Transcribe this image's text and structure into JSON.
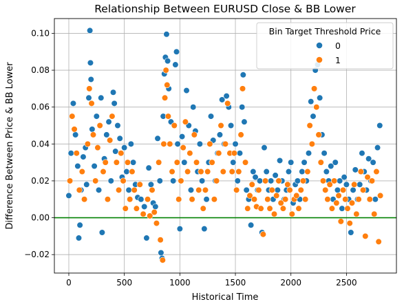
{
  "chart_data": {
    "type": "scatter",
    "title": "Relationship Between EURUSD Close & BB Lower",
    "xlabel": "Historical Time",
    "ylabel": "Difference Between Price & BB Lower",
    "xlim": [
      -130,
      2950
    ],
    "ylim": [
      -0.03,
      0.108
    ],
    "xticks": [
      0,
      500,
      1000,
      1500,
      2000,
      2500
    ],
    "xtick_labels": [
      "0",
      "500",
      "1000",
      "1500",
      "2000",
      "2500"
    ],
    "yticks": [
      -0.02,
      0.0,
      0.02,
      0.04,
      0.06,
      0.08,
      0.1
    ],
    "ytick_labels": [
      "−0.02",
      "0.00",
      "0.02",
      "0.04",
      "0.06",
      "0.08",
      "0.10"
    ],
    "grid": true,
    "reference_line": {
      "y": 0.0,
      "color": "#008000"
    },
    "legend": {
      "title": "Bin Target Threshold Price",
      "placement": "top-right",
      "entries": [
        "0",
        "1"
      ]
    },
    "series": [
      {
        "name": "0",
        "color": "#1f77b4",
        "points": [
          [
            0,
            0.012
          ],
          [
            20,
            0.035
          ],
          [
            40,
            0.062
          ],
          [
            60,
            0.045
          ],
          [
            80,
            0.028
          ],
          [
            90,
            -0.011
          ],
          [
            100,
            -0.004
          ],
          [
            110,
            0.015
          ],
          [
            130,
            0.033
          ],
          [
            150,
            0.038
          ],
          [
            160,
            0.018
          ],
          [
            180,
            0.065
          ],
          [
            190,
            0.1015
          ],
          [
            195,
            0.084
          ],
          [
            200,
            0.075
          ],
          [
            210,
            0.048
          ],
          [
            230,
            0.028
          ],
          [
            250,
            0.055
          ],
          [
            270,
            0.015
          ],
          [
            290,
            0.065
          ],
          [
            300,
            -0.008
          ],
          [
            320,
            0.032
          ],
          [
            340,
            0.045
          ],
          [
            360,
            0.052
          ],
          [
            380,
            0.02
          ],
          [
            400,
            0.068
          ],
          [
            410,
            0.062
          ],
          [
            420,
            0.036
          ],
          [
            440,
            0.05
          ],
          [
            460,
            0.043
          ],
          [
            480,
            0.022
          ],
          [
            500,
            0.038
          ],
          [
            520,
            0.025
          ],
          [
            540,
            0.015
          ],
          [
            560,
            0.04
          ],
          [
            580,
            0.03
          ],
          [
            600,
            0.018
          ],
          [
            620,
            0.011
          ],
          [
            650,
            0.01
          ],
          [
            680,
            0.006
          ],
          [
            700,
            -0.011
          ],
          [
            720,
            0.027
          ],
          [
            740,
            0.018
          ],
          [
            760,
            0.008
          ],
          [
            780,
            0.006
          ],
          [
            800,
            0.043
          ],
          [
            820,
            0.02
          ],
          [
            830,
            -0.019
          ],
          [
            840,
            -0.022
          ],
          [
            850,
            0.055
          ],
          [
            860,
            0.078
          ],
          [
            870,
            0.087
          ],
          [
            880,
            0.0995
          ],
          [
            890,
            0.085
          ],
          [
            900,
            0.07
          ],
          [
            920,
            0.052
          ],
          [
            940,
            0.02
          ],
          [
            960,
            0.083
          ],
          [
            970,
            0.09
          ],
          [
            980,
            0.04
          ],
          [
            1000,
            -0.006
          ],
          [
            1020,
            0.044
          ],
          [
            1040,
            0.03
          ],
          [
            1060,
            0.069
          ],
          [
            1080,
            0.05
          ],
          [
            1100,
            0.015
          ],
          [
            1120,
            0.06
          ],
          [
            1140,
            0.047
          ],
          [
            1160,
            0.025
          ],
          [
            1180,
            0.04
          ],
          [
            1200,
            0.02
          ],
          [
            1220,
            -0.006
          ],
          [
            1240,
            0.01
          ],
          [
            1260,
            0.03
          ],
          [
            1280,
            0.055
          ],
          [
            1300,
            0.042
          ],
          [
            1320,
            0.02
          ],
          [
            1340,
            0.035
          ],
          [
            1360,
            0.045
          ],
          [
            1380,
            0.064
          ],
          [
            1400,
            0.04
          ],
          [
            1420,
            0.066
          ],
          [
            1440,
            0.06
          ],
          [
            1460,
            0.05
          ],
          [
            1480,
            0.03
          ],
          [
            1500,
            0.04
          ],
          [
            1520,
            0.02
          ],
          [
            1540,
            0.035
          ],
          [
            1560,
            0.06
          ],
          [
            1570,
            0.0775
          ],
          [
            1580,
            0.052
          ],
          [
            1600,
            0.015
          ],
          [
            1620,
            0.01
          ],
          [
            1640,
            -0.004
          ],
          [
            1660,
            0.025
          ],
          [
            1680,
            0.022
          ],
          [
            1700,
            0.015
          ],
          [
            1720,
            0.02
          ],
          [
            1740,
            -0.008
          ],
          [
            1760,
            0.038
          ],
          [
            1780,
            0.025
          ],
          [
            1800,
            0.015
          ],
          [
            1820,
            0.02
          ],
          [
            1840,
            0.01
          ],
          [
            1860,
            0.023
          ],
          [
            1880,
            0.015
          ],
          [
            1900,
            0.031
          ],
          [
            1920,
            0.02
          ],
          [
            1940,
            0.01
          ],
          [
            1960,
            0.015
          ],
          [
            1980,
            0.025
          ],
          [
            2000,
            0.03
          ],
          [
            2020,
            0.008
          ],
          [
            2040,
            0.018
          ],
          [
            2060,
            0.02
          ],
          [
            2080,
            0.01
          ],
          [
            2100,
            0.025
          ],
          [
            2120,
            0.03
          ],
          [
            2140,
            0.02
          ],
          [
            2160,
            0.035
          ],
          [
            2180,
            0.063
          ],
          [
            2200,
            0.055
          ],
          [
            2220,
            0.08
          ],
          [
            2240,
            0.083
          ],
          [
            2260,
            0.065
          ],
          [
            2280,
            0.045
          ],
          [
            2300,
            0.035
          ],
          [
            2320,
            0.025
          ],
          [
            2340,
            0.02
          ],
          [
            2360,
            0.028
          ],
          [
            2380,
            0.01
          ],
          [
            2400,
            0.03
          ],
          [
            2420,
            0.015
          ],
          [
            2440,
            0.02
          ],
          [
            2460,
            0.005
          ],
          [
            2480,
            0.022
          ],
          [
            2500,
            0.018
          ],
          [
            2520,
            0.01
          ],
          [
            2540,
            -0.008
          ],
          [
            2560,
            0.015
          ],
          [
            2580,
            0.026
          ],
          [
            2600,
            0.01
          ],
          [
            2620,
            0.018
          ],
          [
            2640,
            0.035
          ],
          [
            2660,
            0.025
          ],
          [
            2680,
            0.015
          ],
          [
            2700,
            0.032
          ],
          [
            2720,
            0.02
          ],
          [
            2740,
            0.03
          ],
          [
            2760,
            0.01
          ],
          [
            2780,
            0.038
          ],
          [
            2800,
            0.05
          ]
        ]
      },
      {
        "name": "1",
        "color": "#ff7f0e",
        "points": [
          [
            10,
            0.02
          ],
          [
            30,
            0.055
          ],
          [
            50,
            0.048
          ],
          [
            70,
            0.035
          ],
          [
            95,
            0.015
          ],
          [
            120,
            0.025
          ],
          [
            140,
            0.01
          ],
          [
            170,
            0.04
          ],
          [
            185,
            0.07
          ],
          [
            205,
            0.062
          ],
          [
            220,
            0.045
          ],
          [
            240,
            0.02
          ],
          [
            260,
            0.038
          ],
          [
            280,
            0.05
          ],
          [
            310,
            0.025
          ],
          [
            330,
            0.03
          ],
          [
            350,
            0.01
          ],
          [
            370,
            0.042
          ],
          [
            390,
            0.055
          ],
          [
            430,
            0.03
          ],
          [
            450,
            0.015
          ],
          [
            470,
            0.035
          ],
          [
            490,
            0.02
          ],
          [
            510,
            0.005
          ],
          [
            530,
            0.03
          ],
          [
            550,
            0.01
          ],
          [
            570,
            0.025
          ],
          [
            590,
            0.015
          ],
          [
            610,
            0.005
          ],
          [
            640,
            0.018
          ],
          [
            670,
            0.002
          ],
          [
            710,
            0.01
          ],
          [
            730,
            0.001
          ],
          [
            750,
            0.015
          ],
          [
            770,
            0.003
          ],
          [
            790,
            -0.003
          ],
          [
            810,
            0.03
          ],
          [
            825,
            -0.012
          ],
          [
            845,
            -0.023
          ],
          [
            855,
            0.04
          ],
          [
            865,
            0.065
          ],
          [
            875,
            0.08
          ],
          [
            885,
            0.072
          ],
          [
            895,
            0.055
          ],
          [
            910,
            0.04
          ],
          [
            930,
            0.025
          ],
          [
            950,
            0.05
          ],
          [
            975,
            0.03
          ],
          [
            990,
            0.01
          ],
          [
            1010,
            0.02
          ],
          [
            1030,
            0.038
          ],
          [
            1050,
            0.052
          ],
          [
            1070,
            0.025
          ],
          [
            1090,
            0.035
          ],
          [
            1110,
            0.01
          ],
          [
            1130,
            0.045
          ],
          [
            1150,
            0.03
          ],
          [
            1170,
            0.015
          ],
          [
            1190,
            0.025
          ],
          [
            1210,
            0.005
          ],
          [
            1230,
            0.015
          ],
          [
            1250,
            0.025
          ],
          [
            1270,
            0.04
          ],
          [
            1290,
            0.03
          ],
          [
            1310,
            0.01
          ],
          [
            1330,
            0.02
          ],
          [
            1350,
            0.035
          ],
          [
            1370,
            0.05
          ],
          [
            1390,
            0.025
          ],
          [
            1410,
            0.04
          ],
          [
            1430,
            0.062
          ],
          [
            1450,
            0.035
          ],
          [
            1470,
            0.025
          ],
          [
            1490,
            0.035
          ],
          [
            1510,
            0.015
          ],
          [
            1530,
            0.025
          ],
          [
            1550,
            0.045
          ],
          [
            1565,
            0.07
          ],
          [
            1590,
            0.03
          ],
          [
            1610,
            0.005
          ],
          [
            1630,
            0.012
          ],
          [
            1650,
            0.018
          ],
          [
            1670,
            0.01
          ],
          [
            1690,
            0.006
          ],
          [
            1710,
            0.015
          ],
          [
            1730,
            0.005
          ],
          [
            1750,
            -0.009
          ],
          [
            1770,
            0.02
          ],
          [
            1790,
            0.01
          ],
          [
            1810,
            0.005
          ],
          [
            1830,
            0.015
          ],
          [
            1850,
            0.002
          ],
          [
            1870,
            0.012
          ],
          [
            1890,
            0.02
          ],
          [
            1910,
            0.008
          ],
          [
            1930,
            0.005
          ],
          [
            1950,
            0.01
          ],
          [
            1970,
            0.018
          ],
          [
            1990,
            0.015
          ],
          [
            2010,
            0.002
          ],
          [
            2030,
            0.01
          ],
          [
            2050,
            0.012
          ],
          [
            2070,
            0.005
          ],
          [
            2090,
            0.015
          ],
          [
            2110,
            0.02
          ],
          [
            2130,
            0.01
          ],
          [
            2150,
            0.025
          ],
          [
            2170,
            0.05
          ],
          [
            2190,
            0.04
          ],
          [
            2210,
            0.07
          ],
          [
            2230,
            0.06
          ],
          [
            2250,
            0.045
          ],
          [
            2270,
            0.03
          ],
          [
            2290,
            0.02
          ],
          [
            2310,
            0.015
          ],
          [
            2330,
            0.01
          ],
          [
            2350,
            0.018
          ],
          [
            2370,
            0.005
          ],
          [
            2390,
            0.02
          ],
          [
            2410,
            0.008
          ],
          [
            2430,
            0.012
          ],
          [
            2450,
            -0.002
          ],
          [
            2470,
            0.015
          ],
          [
            2490,
            0.01
          ],
          [
            2510,
            0.005
          ],
          [
            2530,
            -0.003
          ],
          [
            2550,
            0.008
          ],
          [
            2570,
            0.018
          ],
          [
            2590,
            0.002
          ],
          [
            2610,
            0.01
          ],
          [
            2630,
            0.025
          ],
          [
            2650,
            0.015
          ],
          [
            2670,
            -0.01
          ],
          [
            2690,
            0.022
          ],
          [
            2710,
            0.01
          ],
          [
            2730,
            0.02
          ],
          [
            2750,
            0.002
          ],
          [
            2770,
            0.025
          ],
          [
            2790,
            -0.013
          ],
          [
            2805,
            0.012
          ]
        ]
      }
    ]
  }
}
